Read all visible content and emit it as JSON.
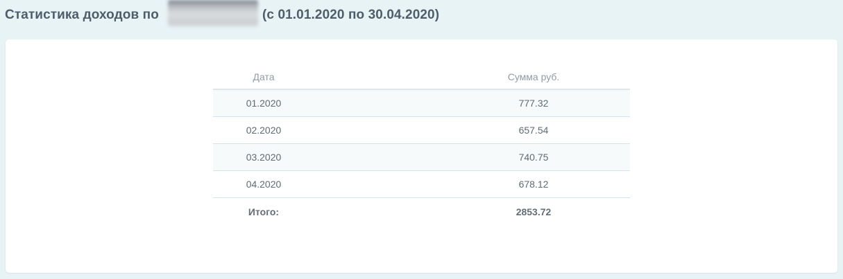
{
  "title": {
    "prefix": "Статистика доходов по",
    "period": "(с 01.01.2020 по 30.04.2020)"
  },
  "table": {
    "columns": [
      {
        "label": "Дата"
      },
      {
        "label": "Сумма руб."
      }
    ],
    "rows": [
      {
        "date": "01.2020",
        "amount": "777.32"
      },
      {
        "date": "02.2020",
        "amount": "657.54"
      },
      {
        "date": "03.2020",
        "amount": "740.75"
      },
      {
        "date": "04.2020",
        "amount": "678.12"
      }
    ],
    "total": {
      "label": "Итого:",
      "amount": "2853.72"
    }
  },
  "colors": {
    "page_background": "#e8f3f6",
    "card_background": "#ffffff",
    "title_text": "#4f5d6a",
    "header_text": "#909ca6",
    "cell_text": "#5f6a73",
    "row_divider": "#cfe5ea",
    "header_divider": "#dfe6ea",
    "striped_row": "#f7fafb"
  }
}
